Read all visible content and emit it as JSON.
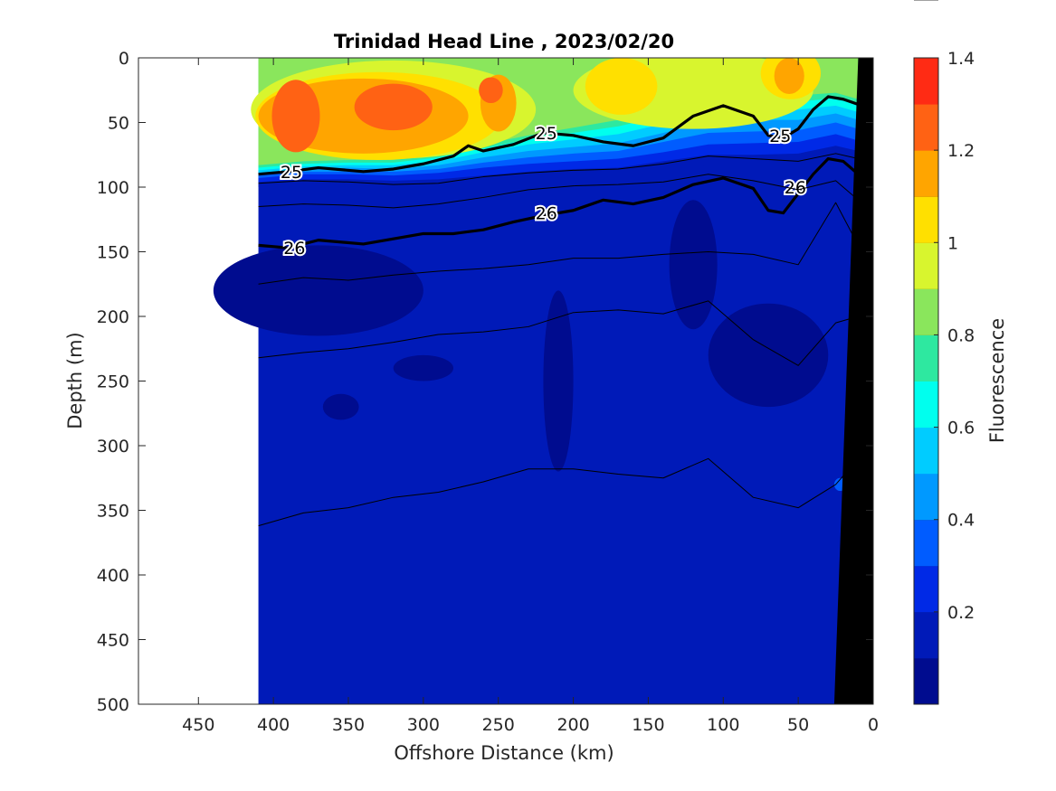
{
  "chart_data": {
    "type": "heatmap",
    "title": "Trinidad Head Line , 2023/02/20",
    "xlabel": "Offshore Distance (km)",
    "ylabel": "Depth (m)",
    "xlim": [
      490,
      0
    ],
    "ylim": [
      500,
      0
    ],
    "x_reversed": true,
    "y_reversed": true,
    "x_ticks": [
      "450",
      "400",
      "350",
      "300",
      "250",
      "200",
      "150",
      "100",
      "50",
      "0"
    ],
    "x_tick_values": [
      450,
      400,
      350,
      300,
      250,
      200,
      150,
      100,
      50,
      0
    ],
    "y_ticks": [
      "0",
      "50",
      "100",
      "150",
      "200",
      "250",
      "300",
      "350",
      "400",
      "450",
      "500"
    ],
    "y_tick_values": [
      0,
      50,
      100,
      150,
      200,
      250,
      300,
      350,
      400,
      450,
      500
    ],
    "data_extent_km": [
      410,
      10
    ],
    "colorbar": {
      "label": "Fluorescence",
      "limits": [
        0,
        1.4
      ],
      "tick_labels": [
        "0.2",
        "0.4",
        "0.6",
        "0.8",
        "1",
        "1.2",
        "1.4"
      ],
      "tick_values": [
        0.2,
        0.4,
        0.6,
        0.8,
        1.0,
        1.2,
        1.4
      ],
      "levels": [
        0,
        0.1,
        0.2,
        0.3,
        0.4,
        0.5,
        0.6,
        0.7,
        0.8,
        0.9,
        1.0,
        1.1,
        1.2,
        1.3,
        1.4
      ],
      "colors": [
        "#000c8f",
        "#001ab8",
        "#0029e6",
        "#005cff",
        "#0099ff",
        "#00ccff",
        "#00ffee",
        "#2ee8a0",
        "#8ae65c",
        "#d8f52e",
        "#ffe000",
        "#ffa500",
        "#ff6214",
        "#ff2b14",
        "#c40000"
      ]
    },
    "fluorescence_layers": [
      {
        "level": "0.1-0.2",
        "upper_boundary": {
          "x": [
            410,
            380,
            350,
            320,
            290,
            260,
            230,
            200,
            170,
            140,
            110,
            80,
            50,
            25,
            10
          ],
          "depth": [
            100,
            97,
            98,
            100,
            99,
            96,
            94,
            92,
            92,
            88,
            83,
            83,
            82,
            76,
            80
          ]
        }
      },
      {
        "level": "0.2-0.3",
        "upper_boundary": {
          "x": [
            410,
            380,
            350,
            320,
            290,
            260,
            230,
            200,
            170,
            140,
            110,
            80,
            50,
            25,
            10
          ],
          "depth": [
            96,
            94,
            94,
            95,
            94,
            91,
            88,
            86,
            85,
            80,
            75,
            75,
            74,
            68,
            72
          ]
        }
      },
      {
        "level": "0.3-0.4",
        "upper_boundary": {
          "x": [
            410,
            380,
            350,
            320,
            290,
            260,
            230,
            200,
            170,
            140,
            110,
            80,
            50,
            25,
            10
          ],
          "depth": [
            93,
            90,
            90,
            91,
            89,
            85,
            82,
            80,
            78,
            73,
            67,
            66,
            65,
            59,
            64
          ]
        }
      },
      {
        "level": "0.4-0.5",
        "upper_boundary": {
          "x": [
            410,
            380,
            350,
            320,
            290,
            260,
            230,
            200,
            170,
            140,
            110,
            80,
            50,
            25,
            10
          ],
          "depth": [
            91,
            88,
            88,
            88,
            86,
            81,
            77,
            74,
            72,
            65,
            58,
            57,
            56,
            50,
            55
          ]
        }
      },
      {
        "level": "0.5-0.6",
        "upper_boundary": {
          "x": [
            410,
            380,
            350,
            320,
            290,
            260,
            230,
            200,
            170,
            140,
            110,
            80,
            50,
            25,
            10
          ],
          "depth": [
            89,
            86,
            85,
            86,
            83,
            77,
            72,
            69,
            66,
            58,
            50,
            48,
            48,
            43,
            48
          ]
        }
      },
      {
        "level": "0.6-0.7",
        "upper_boundary": {
          "x": [
            410,
            380,
            350,
            320,
            290,
            260,
            230,
            200,
            170,
            140,
            110,
            80,
            50,
            25,
            10
          ],
          "depth": [
            87,
            84,
            83,
            83,
            80,
            73,
            67,
            63,
            59,
            51,
            42,
            40,
            40,
            37,
            42
          ]
        }
      },
      {
        "level": "0.7-0.8",
        "upper_boundary": {
          "x": [
            410,
            380,
            350,
            320,
            290,
            260,
            230,
            200,
            170,
            140,
            110,
            80,
            50,
            25,
            10
          ],
          "depth": [
            85,
            82,
            81,
            81,
            77,
            70,
            63,
            58,
            53,
            45,
            36,
            33,
            34,
            31,
            36
          ]
        }
      },
      {
        "level": "0.8-0.9",
        "upper_boundary": {
          "x": [
            410,
            380,
            350,
            320,
            290,
            260,
            230,
            200,
            170,
            140,
            110,
            80,
            50,
            25,
            10
          ],
          "depth": [
            83,
            80,
            79,
            79,
            75,
            67,
            60,
            54,
            48,
            40,
            31,
            28,
            29,
            27,
            32
          ]
        }
      }
    ],
    "fluorescence_patches": [
      {
        "level": "0.9-1.0",
        "center": [
          320,
          40
        ],
        "radius": [
          95,
          38
        ]
      },
      {
        "level": "0.9-1.0",
        "center": [
          120,
          25
        ],
        "radius": [
          80,
          30
        ]
      },
      {
        "level": "1.0-1.1",
        "center": [
          330,
          45
        ],
        "radius": [
          82,
          34
        ]
      },
      {
        "level": "1.0-1.1",
        "center": [
          168,
          22
        ],
        "radius": [
          24,
          22
        ]
      },
      {
        "level": "1.0-1.1",
        "center": [
          55,
          12
        ],
        "radius": [
          20,
          20
        ]
      },
      {
        "level": "1.1-1.2",
        "center": [
          340,
          45
        ],
        "radius": [
          70,
          29
        ]
      },
      {
        "level": "1.1-1.2",
        "center": [
          250,
          35
        ],
        "radius": [
          12,
          22
        ]
      },
      {
        "level": "1.1-1.2",
        "center": [
          56,
          14
        ],
        "radius": [
          10,
          14
        ]
      },
      {
        "level": "1.2-1.3",
        "center": [
          385,
          45
        ],
        "radius": [
          16,
          28
        ]
      },
      {
        "level": "1.2-1.3",
        "center": [
          320,
          38
        ],
        "radius": [
          26,
          18
        ]
      },
      {
        "level": "1.2-1.3",
        "center": [
          255,
          25
        ],
        "radius": [
          8,
          10
        ]
      },
      {
        "level": "0.0-0.1",
        "center": [
          370,
          180
        ],
        "radius": [
          70,
          35
        ]
      },
      {
        "level": "0.0-0.1",
        "center": [
          210,
          250
        ],
        "radius": [
          10,
          70
        ]
      },
      {
        "level": "0.0-0.1",
        "center": [
          120,
          160
        ],
        "radius": [
          16,
          50
        ]
      },
      {
        "level": "0.0-0.1",
        "center": [
          70,
          230
        ],
        "radius": [
          40,
          40
        ]
      },
      {
        "level": "0.0-0.1",
        "center": [
          300,
          240
        ],
        "radius": [
          20,
          10
        ]
      },
      {
        "level": "0.0-0.1",
        "center": [
          355,
          270
        ],
        "radius": [
          12,
          10
        ]
      },
      {
        "level": "0.3-0.4",
        "center": [
          22,
          330
        ],
        "radius": [
          4,
          5
        ]
      }
    ],
    "density_contours": [
      {
        "label": "25",
        "bold": true,
        "x": [
          410,
          390,
          370,
          340,
          320,
          300,
          280,
          270,
          260,
          240,
          220,
          200,
          180,
          160,
          140,
          120,
          100,
          80,
          70,
          60,
          50,
          40,
          30,
          20,
          10
        ],
        "depth": [
          90,
          88,
          85,
          88,
          86,
          82,
          76,
          68,
          72,
          67,
          58,
          60,
          65,
          68,
          62,
          45,
          37,
          45,
          60,
          62,
          55,
          40,
          30,
          32,
          36
        ],
        "label_positions": [
          [
            388,
            88
          ],
          [
            218,
            58
          ],
          [
            62,
            60
          ]
        ]
      },
      {
        "label": "26",
        "bold": true,
        "x": [
          410,
          390,
          370,
          340,
          320,
          300,
          280,
          260,
          240,
          220,
          200,
          180,
          160,
          140,
          120,
          100,
          80,
          70,
          60,
          50,
          40,
          30,
          20,
          10
        ],
        "depth": [
          145,
          147,
          141,
          144,
          140,
          136,
          136,
          133,
          127,
          122,
          118,
          110,
          113,
          108,
          98,
          93,
          101,
          118,
          120,
          105,
          90,
          78,
          80,
          90
        ],
        "label_positions": [
          [
            386,
            147
          ],
          [
            218,
            120
          ],
          [
            52,
            100
          ]
        ]
      },
      {
        "label": "",
        "bold": false,
        "x": [
          410,
          380,
          350,
          320,
          290,
          260,
          230,
          200,
          170,
          140,
          110,
          80,
          50,
          25,
          10
        ],
        "depth": [
          97,
          95,
          96,
          98,
          97,
          92,
          89,
          87,
          86,
          82,
          76,
          78,
          80,
          74,
          78
        ]
      },
      {
        "label": "",
        "bold": false,
        "x": [
          410,
          380,
          350,
          320,
          290,
          260,
          230,
          200,
          170,
          140,
          110,
          80,
          50,
          25,
          10
        ],
        "depth": [
          115,
          113,
          114,
          116,
          113,
          108,
          102,
          99,
          98,
          96,
          90,
          95,
          102,
          95,
          110
        ]
      },
      {
        "label": "",
        "bold": false,
        "x": [
          410,
          380,
          350,
          320,
          290,
          260,
          230,
          200,
          170,
          140,
          110,
          80,
          50,
          25,
          10
        ],
        "depth": [
          175,
          170,
          172,
          168,
          165,
          163,
          160,
          155,
          155,
          152,
          150,
          152,
          160,
          112,
          145
        ]
      },
      {
        "label": "",
        "bold": false,
        "x": [
          410,
          380,
          350,
          320,
          290,
          260,
          230,
          200,
          170,
          140,
          110,
          80,
          50,
          25,
          10
        ],
        "depth": [
          232,
          228,
          225,
          220,
          214,
          212,
          208,
          197,
          195,
          198,
          188,
          218,
          238,
          205,
          200
        ]
      },
      {
        "label": "",
        "bold": false,
        "x": [
          410,
          380,
          350,
          320,
          290,
          260,
          230,
          200,
          170,
          140,
          110,
          80,
          50,
          25,
          10
        ],
        "depth": [
          362,
          352,
          348,
          340,
          336,
          328,
          318,
          318,
          322,
          325,
          310,
          340,
          348,
          330,
          310
        ]
      }
    ],
    "bathymetry": {
      "x": [
        0,
        10,
        26,
        0
      ],
      "depth": [
        0,
        0,
        500,
        500
      ]
    },
    "blank_region_km": [
      490,
      410
    ]
  }
}
